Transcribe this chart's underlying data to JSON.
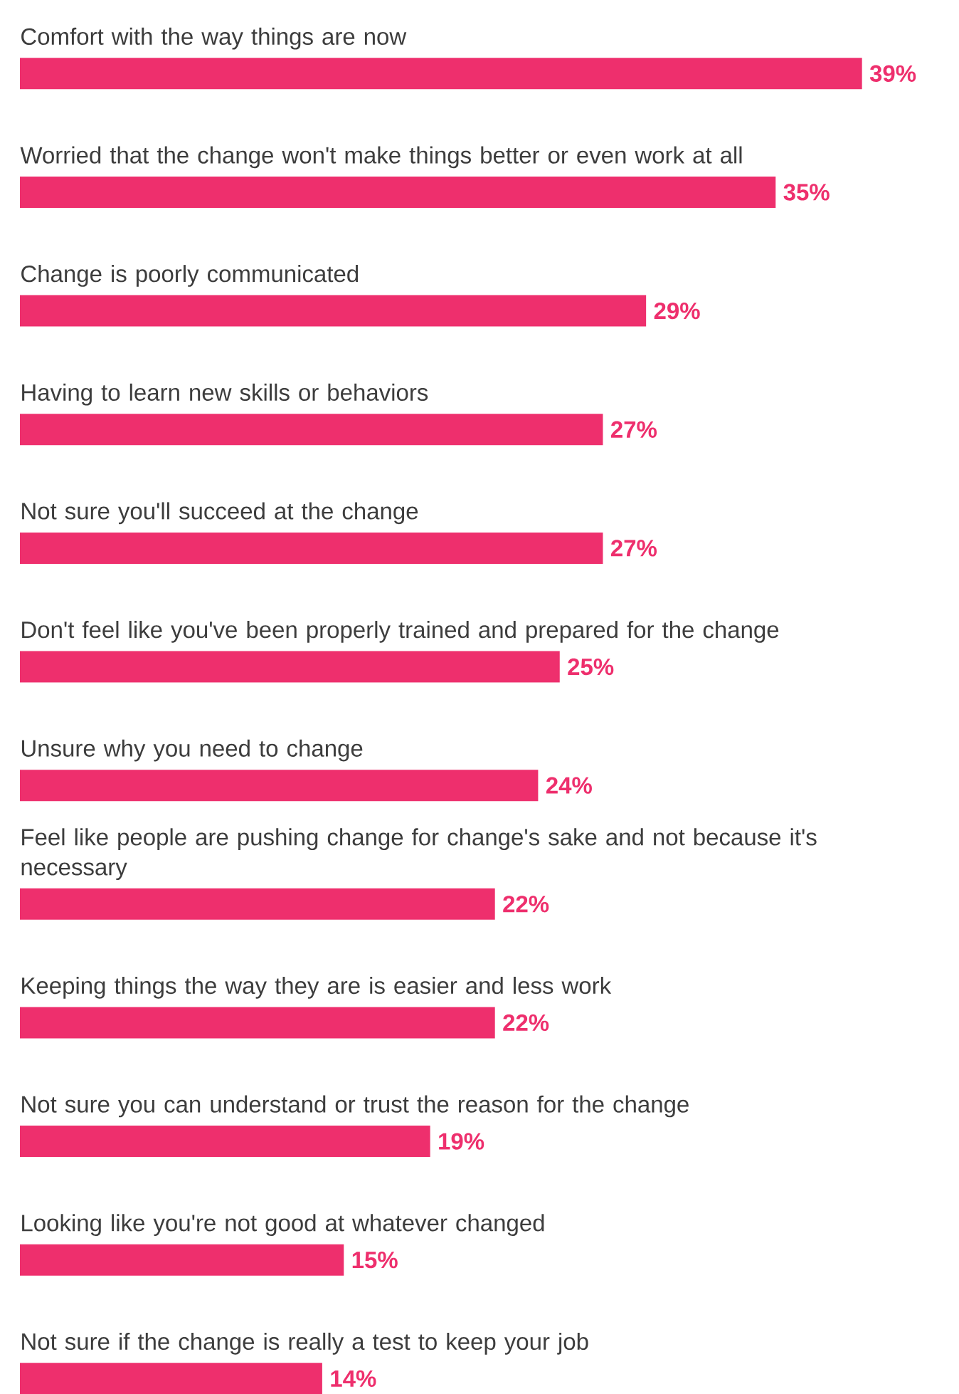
{
  "chart_data": {
    "type": "bar",
    "orientation": "horizontal",
    "color": "#ee2f6d",
    "categories": [
      "Comfort with the way things are now",
      "Worried that the change won't make things better or even work at all",
      "Change is poorly communicated",
      "Having to learn new skills or behaviors",
      "Not sure you'll succeed at the change",
      "Don't feel like you've been properly trained and prepared for the change",
      "Unsure why you need to change",
      "Feel like people are pushing change for change's sake and not because it's necessary",
      "Keeping things the way they are is easier and less work",
      "Not sure you can understand or trust the reason for the change",
      "Looking like you're not good at whatever changed",
      "Not sure if the change is really a test to keep your job"
    ],
    "values": [
      39,
      35,
      29,
      27,
      27,
      25,
      24,
      22,
      22,
      19,
      15,
      14
    ],
    "value_labels": [
      "39%",
      "35%",
      "29%",
      "27%",
      "27%",
      "25%",
      "24%",
      "22%",
      "22%",
      "19%",
      "15%",
      "14%"
    ]
  }
}
